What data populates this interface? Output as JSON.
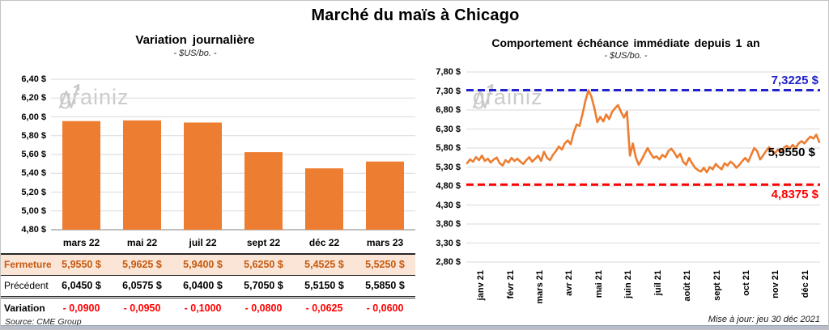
{
  "header": {
    "title": "Marché du maïs à Chicago"
  },
  "footer": {
    "source": "Source: CME Group",
    "updated": "Mise à jour: jeu 30 déc 2021"
  },
  "watermark": {
    "left": "grain",
    "right": "iz"
  },
  "colors": {
    "series_orange": "#ED7D31",
    "resistance_blue": "#2222CC",
    "support_red": "#FF0000",
    "gridline": "#DADADA",
    "axis_line": "#7F7F7F",
    "close_row_bg": "#FBE5D6",
    "close_row_text": "#C55A11",
    "watermark_gray": "#CBCBCB"
  },
  "chart_data": [
    {
      "type": "bar",
      "title": "Variation journalière",
      "subtitle": "- $US/bo. -",
      "categories": [
        "mars 22",
        "mai 22",
        "juil 22",
        "sept 22",
        "déc 22",
        "mars 23"
      ],
      "values": [
        5.955,
        5.9625,
        5.94,
        5.625,
        5.4525,
        5.525
      ],
      "ylim": [
        4.8,
        6.4
      ],
      "ytick_step": 0.2,
      "ytick_labels": [
        "6,40 $",
        "6,20 $",
        "6,00 $",
        "5,80 $",
        "5,60 $",
        "5,40 $",
        "5,20 $",
        "5,00 $",
        "4,80 $"
      ],
      "grid": true,
      "legend": "none"
    },
    {
      "type": "line",
      "title": "Comportement échéance immédiate depuis 1 an",
      "subtitle": "- $US/bo. -",
      "x_labels": [
        "janv 21",
        "févr 21",
        "mars 21",
        "avr 21",
        "mai 21",
        "juin 21",
        "juil 21",
        "août 21",
        "sept 21",
        "oct 21",
        "nov 21",
        "déc 21"
      ],
      "ylim": [
        2.8,
        7.8
      ],
      "ytick_step": 0.5,
      "ytick_labels": [
        "7,80 $",
        "7,30 $",
        "6,80 $",
        "6,30 $",
        "5,80 $",
        "5,30 $",
        "4,80 $",
        "4,30 $",
        "3,80 $",
        "3,30 $",
        "2,80 $"
      ],
      "values": [
        5.4,
        5.5,
        5.44,
        5.56,
        5.48,
        5.6,
        5.46,
        5.52,
        5.42,
        5.5,
        5.55,
        5.4,
        5.34,
        5.48,
        5.42,
        5.54,
        5.46,
        5.52,
        5.44,
        5.38,
        5.48,
        5.56,
        5.44,
        5.52,
        5.6,
        5.46,
        5.7,
        5.54,
        5.48,
        5.62,
        5.72,
        5.84,
        5.76,
        5.92,
        6.0,
        5.9,
        6.2,
        6.42,
        6.38,
        6.7,
        7.05,
        7.32,
        7.15,
        6.85,
        6.48,
        6.62,
        6.5,
        6.68,
        6.56,
        6.75,
        6.85,
        6.93,
        6.75,
        6.6,
        6.76,
        5.6,
        5.92,
        5.55,
        5.36,
        5.5,
        5.65,
        5.8,
        5.66,
        5.54,
        5.58,
        5.5,
        5.62,
        5.56,
        5.72,
        5.78,
        5.68,
        5.55,
        5.65,
        5.44,
        5.36,
        5.54,
        5.4,
        5.28,
        5.22,
        5.18,
        5.28,
        5.16,
        5.3,
        5.24,
        5.38,
        5.3,
        5.24,
        5.4,
        5.34,
        5.44,
        5.38,
        5.28,
        5.36,
        5.46,
        5.54,
        5.44,
        5.62,
        5.8,
        5.72,
        5.5,
        5.6,
        5.72,
        5.82,
        5.74,
        5.66,
        5.76,
        5.7,
        5.8,
        5.86,
        5.78,
        5.88,
        5.8,
        5.92,
        5.98,
        5.92,
        6.02,
        6.1,
        6.05,
        6.15,
        5.955
      ],
      "ref_lines": [
        {
          "value": 7.3225,
          "label": "7,3225 $",
          "color": "#2222CC"
        },
        {
          "value": 4.8375,
          "label": "4,8375 $",
          "color": "#FF0000"
        }
      ],
      "last_label": {
        "text": "5,9550 $",
        "value": 5.955
      },
      "grid": true,
      "legend": "none"
    }
  ],
  "table": {
    "col_headers": [
      "mars 22",
      "mai 22",
      "juil 22",
      "sept 22",
      "déc 22",
      "mars 23"
    ],
    "rows": [
      {
        "label": "Fermeture",
        "style": "close",
        "values": [
          "5,9550 $",
          "5,9625 $",
          "5,9400 $",
          "5,6250 $",
          "5,4525 $",
          "5,5250 $"
        ]
      },
      {
        "label": "Précédent",
        "style": "prev",
        "values": [
          "6,0450 $",
          "6,0575 $",
          "6,0400 $",
          "5,7050 $",
          "5,5150 $",
          "5,5850 $"
        ]
      },
      {
        "label": "Variation",
        "style": "var",
        "values": [
          "- 0,0900",
          "- 0,0950",
          "- 0,1000",
          "- 0,0800",
          "- 0,0625",
          "- 0,0600"
        ]
      }
    ]
  }
}
